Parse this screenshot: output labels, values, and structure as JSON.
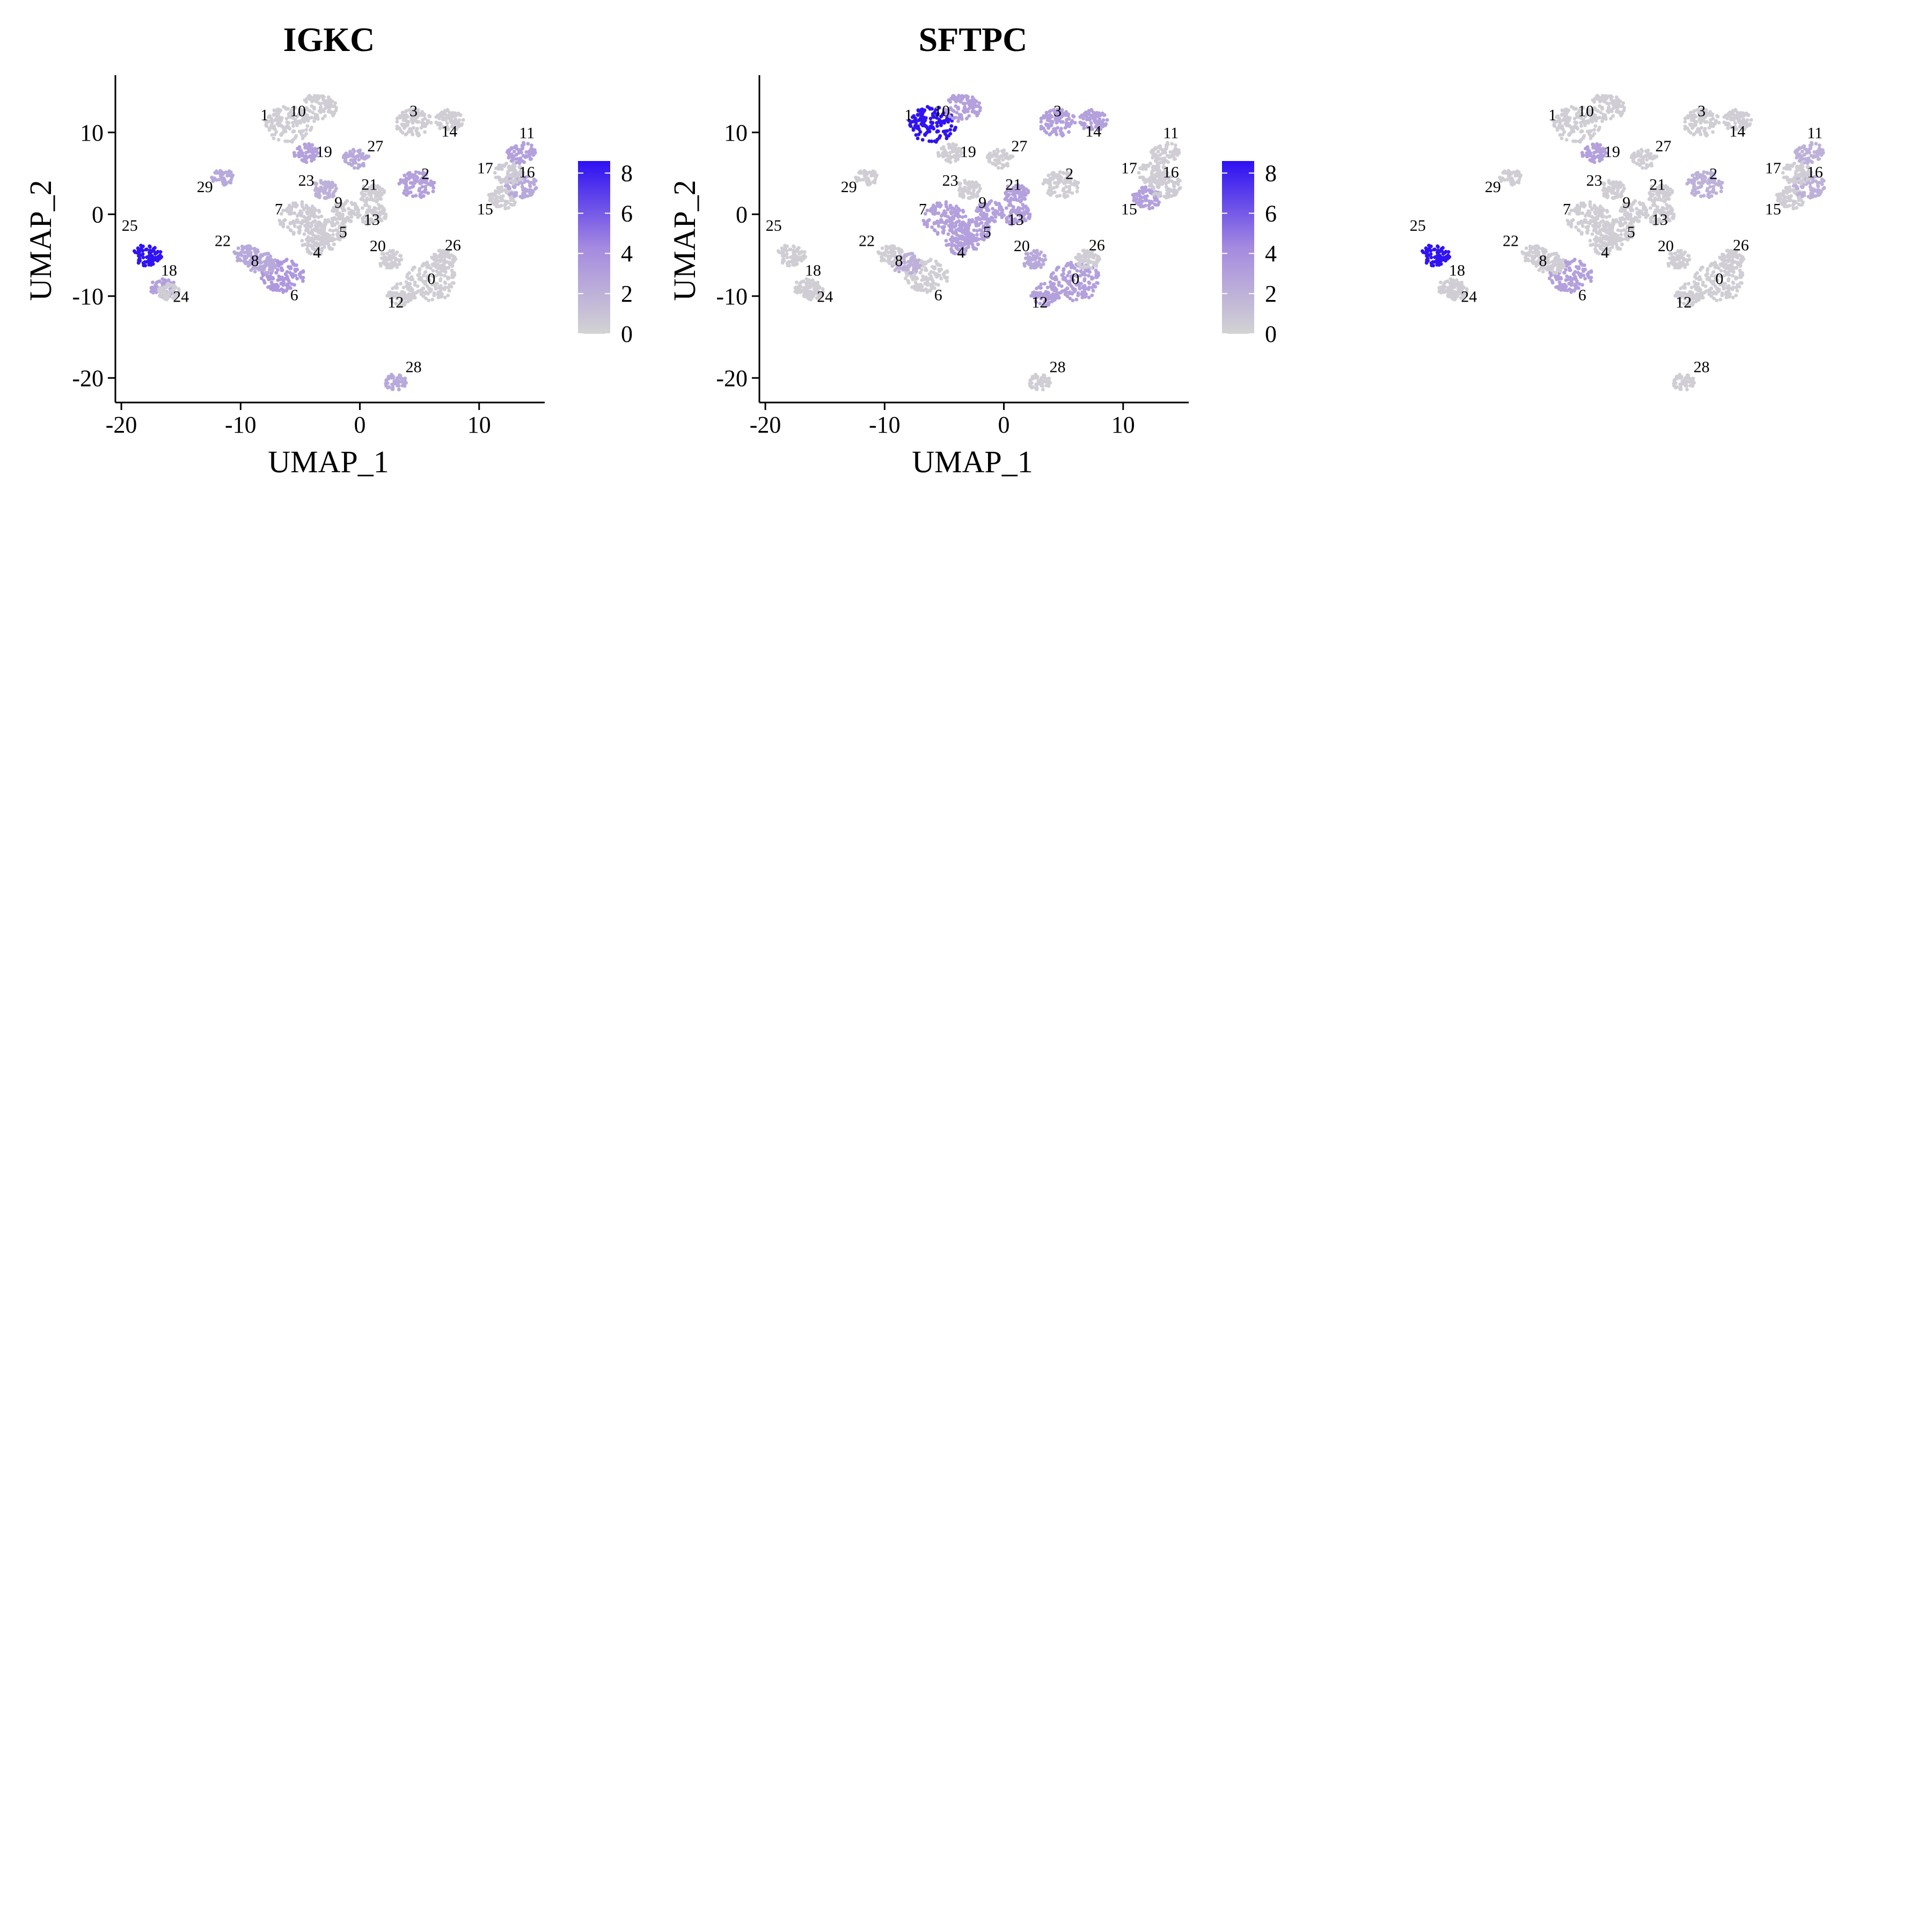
{
  "colors": {
    "low": "#d3d3d3",
    "mid": "#a58ae0",
    "high": "#2d10f2",
    "axis": "#000000"
  },
  "legend": {
    "ticks": [
      0,
      2,
      4,
      6,
      8
    ],
    "range": [
      0,
      8.6
    ]
  },
  "clusters": [
    {
      "id": "0",
      "x": 6.0,
      "y": -8.2,
      "label_x": 6.0,
      "label_y": -8.5,
      "size": 1.0
    },
    {
      "id": "1",
      "x": -6.0,
      "y": 11.0,
      "label_x": -8.0,
      "label_y": 11.5,
      "size": 0.9
    },
    {
      "id": "2",
      "x": 4.8,
      "y": 3.6,
      "label_x": 5.5,
      "label_y": 4.3,
      "size": 0.6
    },
    {
      "id": "3",
      "x": 4.5,
      "y": 11.2,
      "label_x": 4.5,
      "label_y": 12.0,
      "size": 0.6
    },
    {
      "id": "4",
      "x": -3.5,
      "y": -3.5,
      "label_x": -3.6,
      "label_y": -5.3,
      "size": 0.5
    },
    {
      "id": "5",
      "x": -2.5,
      "y": -2.0,
      "label_x": -1.4,
      "label_y": -2.8,
      "size": 0.5
    },
    {
      "id": "6",
      "x": -6.5,
      "y": -7.5,
      "label_x": -5.5,
      "label_y": -10.5,
      "size": 0.8
    },
    {
      "id": "7",
      "x": -5.0,
      "y": -0.5,
      "label_x": -6.8,
      "label_y": 0.0,
      "size": 0.8
    },
    {
      "id": "8",
      "x": -8.2,
      "y": -6.0,
      "label_x": -8.8,
      "label_y": -6.3,
      "size": 0.4
    },
    {
      "id": "9",
      "x": -1.2,
      "y": 0.3,
      "label_x": -1.8,
      "label_y": 0.8,
      "size": 0.4
    },
    {
      "id": "10",
      "x": -3.5,
      "y": 13.0,
      "label_x": -5.2,
      "label_y": 12.0,
      "size": 0.6
    },
    {
      "id": "11",
      "x": 13.5,
      "y": 7.5,
      "label_x": 14.0,
      "label_y": 9.3,
      "size": 0.4
    },
    {
      "id": "12",
      "x": 3.5,
      "y": -9.8,
      "label_x": 3.0,
      "label_y": -11.4,
      "size": 0.4
    },
    {
      "id": "13",
      "x": 1.0,
      "y": 0.0,
      "label_x": 1.0,
      "label_y": -1.3,
      "size": 0.4
    },
    {
      "id": "14",
      "x": 7.5,
      "y": 11.5,
      "label_x": 7.5,
      "label_y": 9.5,
      "size": 0.4
    },
    {
      "id": "15",
      "x": 12.0,
      "y": 2.0,
      "label_x": 10.5,
      "label_y": 0.0,
      "size": 0.4
    },
    {
      "id": "16",
      "x": 13.5,
      "y": 3.5,
      "label_x": 14.0,
      "label_y": 4.5,
      "size": 0.5
    },
    {
      "id": "17",
      "x": 12.5,
      "y": 5.0,
      "label_x": 10.5,
      "label_y": 5.0,
      "size": 0.4
    },
    {
      "id": "18",
      "x": -16.5,
      "y": -9.0,
      "label_x": -16.0,
      "label_y": -7.5,
      "size": 0.3
    },
    {
      "id": "19",
      "x": -4.5,
      "y": 7.5,
      "label_x": -3.0,
      "label_y": 7.0,
      "size": 0.3
    },
    {
      "id": "20",
      "x": 2.5,
      "y": -5.5,
      "label_x": 1.5,
      "label_y": -4.5,
      "size": 0.3
    },
    {
      "id": "21",
      "x": 1.0,
      "y": 2.5,
      "label_x": 0.8,
      "label_y": 3.0,
      "size": 0.3
    },
    {
      "id": "22",
      "x": -9.5,
      "y": -5.0,
      "label_x": -11.5,
      "label_y": -3.9,
      "size": 0.3
    },
    {
      "id": "23",
      "x": -3.0,
      "y": 3.0,
      "label_x": -4.5,
      "label_y": 3.5,
      "size": 0.3
    },
    {
      "id": "24",
      "x": -16.0,
      "y": -9.5,
      "label_x": -15.0,
      "label_y": -10.7,
      "size": 0.2
    },
    {
      "id": "25",
      "x": -17.8,
      "y": -5.0,
      "label_x": -19.3,
      "label_y": -2.0,
      "size": 0.4
    },
    {
      "id": "26",
      "x": 7.0,
      "y": -5.5,
      "label_x": 7.8,
      "label_y": -4.4,
      "size": 0.3
    },
    {
      "id": "27",
      "x": -0.3,
      "y": 6.8,
      "label_x": 1.3,
      "label_y": 7.7,
      "size": 0.3
    },
    {
      "id": "28",
      "x": 3.0,
      "y": -20.5,
      "label_x": 4.5,
      "label_y": -19.3,
      "size": 0.2
    },
    {
      "id": "29",
      "x": -11.5,
      "y": 4.5,
      "label_x": -13.0,
      "label_y": 2.7,
      "size": 0.2
    }
  ],
  "chart_data": [
    {
      "type": "scatter",
      "title": "IGKC",
      "xlabel": "UMAP_1",
      "ylabel": "UMAP_2",
      "xlim": [
        -20.5,
        15.5
      ],
      "ylim": [
        -23,
        17
      ],
      "xticks": [
        -20,
        -10,
        0,
        10
      ],
      "yticks": [
        -20,
        -10,
        0,
        10
      ],
      "show_axes": true,
      "show_legend": true,
      "expression": {
        "0": 0.3,
        "1": 0.3,
        "2": 3.0,
        "3": 0.4,
        "4": 0.5,
        "5": 0.3,
        "6": 3.5,
        "7": 0.5,
        "8": 2.5,
        "9": 0.4,
        "10": 0.3,
        "11": 3.0,
        "12": 0.3,
        "13": 0.3,
        "14": 0.3,
        "15": 0.3,
        "16": 2.5,
        "17": 0.5,
        "18": 3.0,
        "19": 3.0,
        "20": 0.3,
        "21": 0.3,
        "22": 2.5,
        "23": 2.0,
        "24": 0.3,
        "25": 8.5,
        "26": 0.3,
        "27": 2.5,
        "28": 2.5,
        "29": 2.5
      }
    },
    {
      "type": "scatter",
      "title": "SFTPC",
      "xlabel": "UMAP_1",
      "ylabel": "UMAP_2",
      "xlim": [
        -20.5,
        15.5
      ],
      "ylim": [
        -23,
        17
      ],
      "xticks": [
        -20,
        -10,
        0,
        10
      ],
      "yticks": [
        -20,
        -10,
        0,
        10
      ],
      "show_axes": true,
      "show_legend": true,
      "expression": {
        "0": 3.0,
        "1": 8.5,
        "2": 0.3,
        "3": 3.0,
        "4": 3.0,
        "5": 3.0,
        "6": 0.3,
        "7": 3.0,
        "8": 2.0,
        "9": 3.0,
        "10": 3.0,
        "11": 0.3,
        "12": 3.0,
        "13": 3.0,
        "14": 3.0,
        "15": 3.0,
        "16": 0.5,
        "17": 0.3,
        "18": 0.3,
        "19": 0.3,
        "20": 2.5,
        "21": 3.0,
        "22": 0.3,
        "23": 0.3,
        "24": 0.3,
        "25": 0.3,
        "26": 0.3,
        "27": 0.3,
        "28": 0.3,
        "29": 0.3
      }
    },
    {
      "type": "scatter",
      "title": "",
      "xlabel": "",
      "ylabel": "",
      "xlim": [
        -20.5,
        15.5
      ],
      "ylim": [
        -23,
        17
      ],
      "show_axes": false,
      "show_legend": false,
      "expression": {
        "0": 0.3,
        "1": 0.3,
        "2": 2.0,
        "3": 0.3,
        "4": 0.3,
        "5": 0.3,
        "6": 3.0,
        "7": 0.3,
        "8": 0.3,
        "9": 0.3,
        "10": 0.3,
        "11": 2.0,
        "12": 0.3,
        "13": 0.3,
        "14": 0.3,
        "15": 0.3,
        "16": 2.0,
        "17": 0.3,
        "18": 0.3,
        "19": 3.0,
        "20": 0.3,
        "21": 0.3,
        "22": 0.3,
        "23": 0.3,
        "24": 0.3,
        "25": 8.5,
        "26": 0.3,
        "27": 0.3,
        "28": 0.3,
        "29": 0.3
      }
    }
  ]
}
